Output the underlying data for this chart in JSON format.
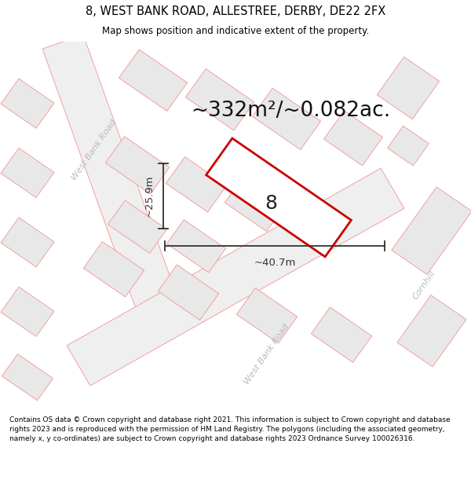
{
  "title": "8, WEST BANK ROAD, ALLESTREE, DERBY, DE22 2FX",
  "subtitle": "Map shows position and indicative extent of the property.",
  "area_text": "~332m²/~0.082ac.",
  "label_number": "8",
  "dim_width": "~40.7m",
  "dim_height": "~25.9m",
  "footer": "Contains OS data © Crown copyright and database right 2021. This information is subject to Crown copyright and database rights 2023 and is reproduced with the permission of HM Land Registry. The polygons (including the associated geometry, namely x, y co-ordinates) are subject to Crown copyright and database rights 2023 Ordnance Survey 100026316.",
  "bg_color": "#ffffff",
  "block_fill": "#e8e8e8",
  "block_edge": "#f4a0a0",
  "road_fill": "#efefef",
  "road_edge": "#f4a0a0",
  "property_edge": "#cc0000",
  "property_fill": "#ffffff",
  "dim_color": "#333333",
  "road_label_color": "#bbbbbb",
  "title_color": "#000000",
  "footer_color": "#000000",
  "area_color": "#111111",
  "separator_color": "#cccccc"
}
